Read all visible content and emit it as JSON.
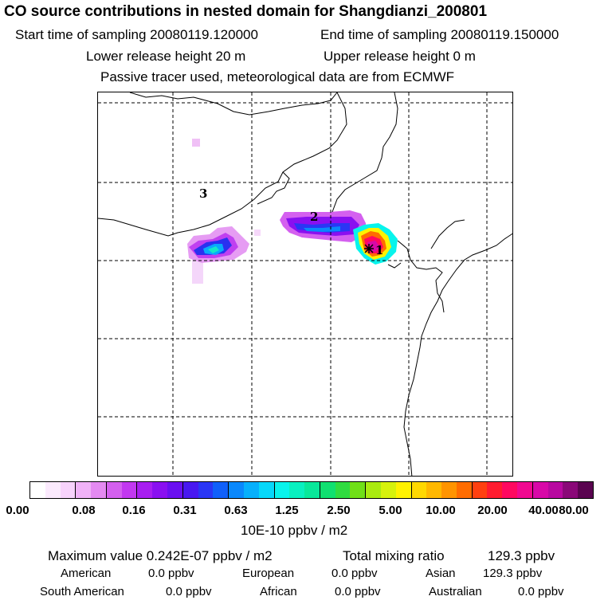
{
  "header": {
    "title": "CO  source contributions in nested domain for Shangdianzi_200801",
    "start_time": "Start time of sampling 20080119.120000",
    "end_time": "End time of sampling 20080119.150000",
    "lower_height": "Lower release height   20 m",
    "upper_height": "Upper release height    0 m",
    "tracer_note": "Passive tracer used, meteorological data are from ECMWF"
  },
  "map": {
    "labels": [
      "3",
      "2",
      "1"
    ]
  },
  "colorbar": {
    "ticks": [
      "0.00",
      "0.08",
      "0.16",
      "0.31",
      "0.63",
      "1.25",
      "2.50",
      "5.00",
      "10.00",
      "20.00",
      "40.00",
      "80.00"
    ],
    "unit": "10E-10 ppbv / m2",
    "colors": [
      "#ffffff",
      "#fbeafd",
      "#f7d2fb",
      "#f0b2f7",
      "#e48af1",
      "#d460ef",
      "#c238f0",
      "#a81ef0",
      "#8a10f0",
      "#6a10f0",
      "#4818f0",
      "#2a36f5",
      "#1060fa",
      "#0a88fc",
      "#06b0fc",
      "#06d8fa",
      "#08f4ec",
      "#08f0c0",
      "#08e89a",
      "#10e070",
      "#30dc40",
      "#70e018",
      "#aaeb10",
      "#d6f20c",
      "#fff200",
      "#ffd800",
      "#ffb800",
      "#ff9400",
      "#ff6c00",
      "#ff4010",
      "#ff1c30",
      "#ff0860",
      "#f00890",
      "#d808a8",
      "#b808a0",
      "#8a0878",
      "#5a0450"
    ]
  },
  "summary": {
    "max_label": "Maximum value  0.242E-07 ppbv / m2",
    "total_label": "Total mixing ratio",
    "total_value": "129.3 ppbv",
    "american": "American",
    "american_val": "0.0 ppbv",
    "european": "European",
    "european_val": "0.0 ppbv",
    "asian": "Asian",
    "asian_val": "129.3 ppbv",
    "south_american": "South American",
    "south_american_val": "0.0 ppbv",
    "african": "African",
    "african_val": "0.0 ppbv",
    "australian": "Australian",
    "australian_val": "0.0 ppbv"
  }
}
